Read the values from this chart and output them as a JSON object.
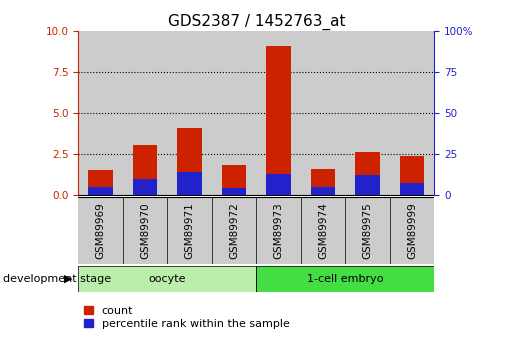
{
  "title": "GDS2387 / 1452763_at",
  "samples": [
    "GSM89969",
    "GSM89970",
    "GSM89971",
    "GSM89972",
    "GSM89973",
    "GSM89974",
    "GSM89975",
    "GSM89999"
  ],
  "count_values": [
    1.5,
    3.05,
    4.1,
    1.8,
    9.1,
    1.6,
    2.6,
    2.4
  ],
  "percentile_values": [
    5.0,
    10.0,
    14.0,
    4.0,
    13.0,
    5.0,
    12.0,
    7.0
  ],
  "bar_color_red": "#cc2200",
  "bar_color_blue": "#2222cc",
  "ylim_left": [
    0,
    10
  ],
  "ylim_right": [
    0,
    100
  ],
  "yticks_left": [
    0,
    2.5,
    5,
    7.5,
    10
  ],
  "yticks_right": [
    0,
    25,
    50,
    75,
    100
  ],
  "groups": [
    {
      "label": "oocyte",
      "indices": [
        0,
        1,
        2,
        3
      ],
      "color": "#bbeeaa"
    },
    {
      "label": "1-cell embryo",
      "indices": [
        4,
        5,
        6,
        7
      ],
      "color": "#44dd44"
    }
  ],
  "group_label_prefix": "development stage",
  "legend_items": [
    {
      "label": "count",
      "color": "#cc2200"
    },
    {
      "label": "percentile rank within the sample",
      "color": "#2222cc"
    }
  ],
  "background_color": "#ffffff",
  "bar_bg_color": "#cccccc",
  "bar_width": 0.55,
  "grid_color": "#000000",
  "title_fontsize": 11,
  "tick_fontsize": 7.5,
  "label_fontsize": 8
}
